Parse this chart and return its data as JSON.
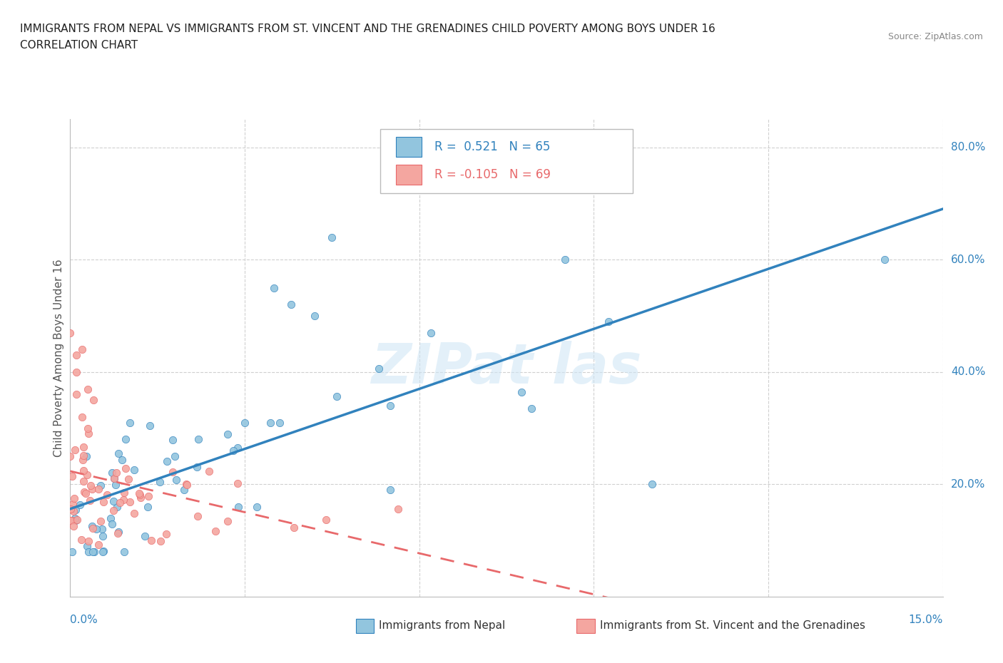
{
  "title_line1": "IMMIGRANTS FROM NEPAL VS IMMIGRANTS FROM ST. VINCENT AND THE GRENADINES CHILD POVERTY AMONG BOYS UNDER 16",
  "title_line2": "CORRELATION CHART",
  "source_text": "Source: ZipAtlas.com",
  "ylabel": "Child Poverty Among Boys Under 16",
  "nepal_color": "#92c5de",
  "nepal_color_line": "#3182bd",
  "stvincent_color": "#f4a6a0",
  "stvincent_color_line": "#e8696b",
  "legend_nepal_R": "0.521",
  "legend_nepal_N": "65",
  "legend_stvincent_R": "-0.105",
  "legend_stvincent_N": "69",
  "xlim": [
    0.0,
    0.15
  ],
  "ylim": [
    0.0,
    0.85
  ],
  "ytick_vals": [
    0.2,
    0.4,
    0.6,
    0.8
  ],
  "ytick_labels": [
    "20.0%",
    "40.0%",
    "60.0%",
    "80.0%"
  ],
  "xtick_label_left": "0.0%",
  "xtick_label_right": "15.0%",
  "background_color": "#ffffff",
  "grid_color": "#d0d0d0"
}
